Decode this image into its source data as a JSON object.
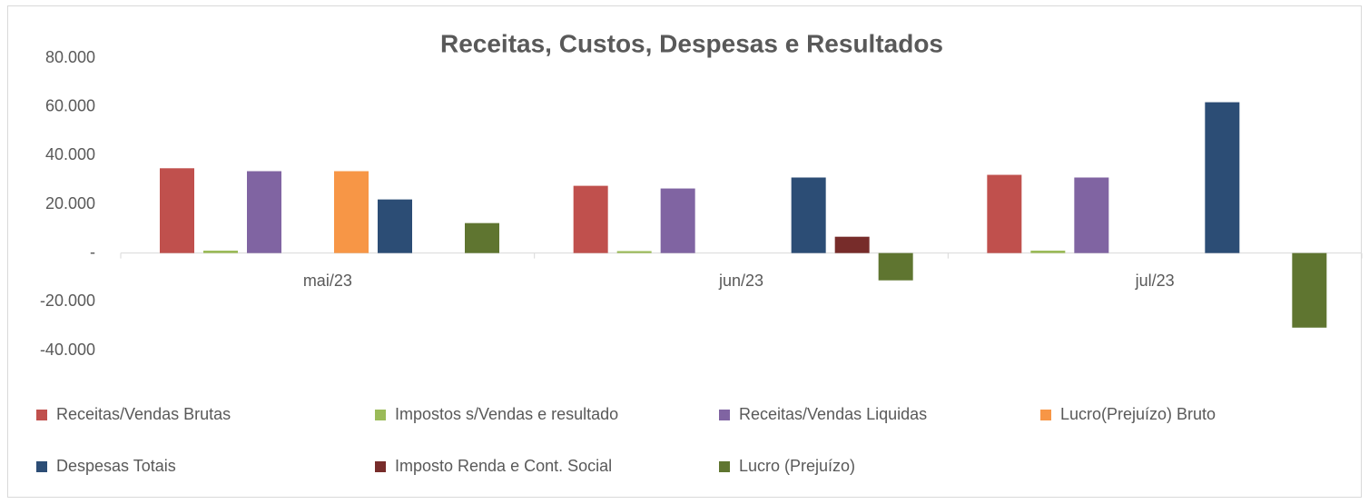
{
  "chart_data": {
    "type": "bar",
    "title": "Receitas, Custos, Despesas e Resultados",
    "categories": [
      "mai/23",
      "jun/23",
      "jul/23"
    ],
    "series": [
      {
        "name": "Receitas/Vendas Brutas",
        "color": "#c0504d",
        "values": [
          34800,
          27600,
          32100
        ]
      },
      {
        "name": "Impostos s/Vendas e resultado",
        "color": "#9bbb59",
        "values": [
          1000,
          800,
          1000
        ]
      },
      {
        "name": "Receitas/Vendas Liquidas",
        "color": "#8064a2",
        "values": [
          33600,
          26500,
          31000
        ]
      },
      {
        "name": "Lucro(Prejuízo) Bruto",
        "color": "#f79646",
        "values": [
          33600,
          0,
          0
        ]
      },
      {
        "name": "Despesas Totais",
        "color": "#2c4d75",
        "values": [
          22000,
          31000,
          61900
        ]
      },
      {
        "name": "Imposto Renda e Cont. Social",
        "color": "#772c2a",
        "values": [
          0,
          6700,
          0
        ]
      },
      {
        "name": "Lucro (Prejuízo)",
        "color": "#5f7530",
        "values": [
          12300,
          -11200,
          -30600
        ]
      }
    ],
    "ylim": [
      -40000,
      80000
    ],
    "yticks": [
      {
        "value": -40000,
        "label": "-40.000"
      },
      {
        "value": -20000,
        "label": "-20.000"
      },
      {
        "value": 0,
        "label": "-"
      },
      {
        "value": 20000,
        "label": "20.000"
      },
      {
        "value": 40000,
        "label": "40.000"
      },
      {
        "value": 60000,
        "label": "60.000"
      },
      {
        "value": 80000,
        "label": "80.000"
      }
    ],
    "grid": false
  }
}
